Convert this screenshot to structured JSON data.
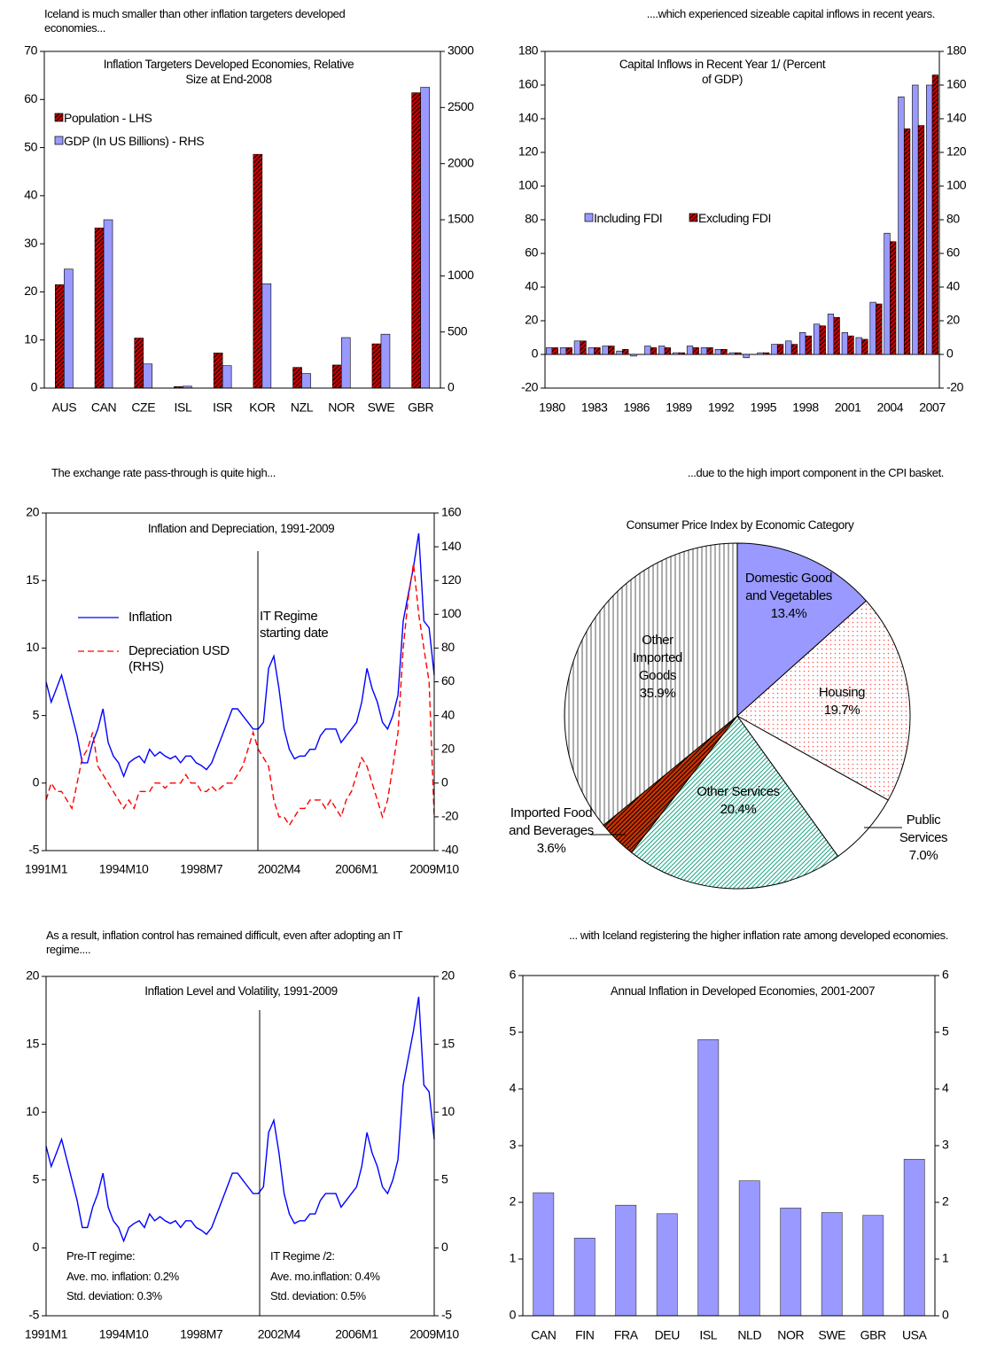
{
  "chart_data": [
    {
      "type": "bar",
      "header": "Iceland is much smaller than other inflation targeters developed economies...",
      "title": "Inflation Targeters Developed Economies, Relative Size at End-2008",
      "categories": [
        "AUS",
        "CAN",
        "CZE",
        "ISL",
        "ISR",
        "KOR",
        "NZL",
        "NOR",
        "SWE",
        "GBR"
      ],
      "series": [
        {
          "name": "Population - LHS",
          "color": "#cc0000",
          "pattern": "hatch",
          "axis": "y",
          "values": [
            21.5,
            33.3,
            10.4,
            0.3,
            7.3,
            48.6,
            4.3,
            4.8,
            9.2,
            61.4
          ]
        },
        {
          "name": "GDP (In US Billions) - RHS",
          "color": "#9999ff",
          "pattern": "solid",
          "axis": "y2",
          "values": [
            1060,
            1500,
            215,
            17,
            200,
            930,
            130,
            450,
            480,
            2680
          ]
        }
      ],
      "ylim": [
        0,
        70
      ],
      "yticks": [
        0,
        10,
        20,
        30,
        40,
        50,
        60,
        70
      ],
      "y2lim": [
        0,
        3000
      ],
      "y2ticks": [
        0,
        500,
        1000,
        1500,
        2000,
        2500,
        3000
      ],
      "legend": "upper left"
    },
    {
      "type": "bar",
      "header": "....which experienced sizeable capital inflows in recent years.",
      "title": "Capital Inflows in Recent Year 1/ (Percent of GDP)",
      "categories": [
        "1980",
        null,
        null,
        "1983",
        null,
        null,
        "1986",
        null,
        null,
        "1989",
        null,
        null,
        "1992",
        null,
        null,
        "1995",
        null,
        null,
        "1998",
        null,
        null,
        "2001",
        null,
        null,
        "2004",
        null,
        null,
        "2007"
      ],
      "series": [
        {
          "name": "Including FDI",
          "color": "#9999ff",
          "pattern": "solid",
          "axis": "y",
          "values": [
            4,
            4,
            8,
            4,
            5,
            2,
            -1,
            5,
            5,
            1,
            5,
            4,
            3,
            1,
            -2,
            1,
            6,
            8,
            13,
            18,
            24,
            13,
            10,
            31,
            72,
            153,
            160,
            160
          ]
        },
        {
          "name": "Excluding FDI",
          "color": "#cc0000",
          "pattern": "hatch",
          "axis": "y",
          "values": [
            4,
            4,
            8,
            4,
            5,
            3,
            0,
            4,
            4,
            1,
            4,
            4,
            3,
            1,
            0,
            1,
            6,
            6,
            11,
            17,
            22,
            11,
            9,
            30,
            67,
            134,
            136,
            166
          ]
        }
      ],
      "ylim": [
        -20,
        180
      ],
      "yticks": [
        -20,
        0,
        20,
        40,
        60,
        80,
        100,
        120,
        140,
        160,
        180
      ],
      "y2lim": [
        -20,
        180
      ],
      "y2ticks": [
        -20,
        0,
        20,
        40,
        60,
        80,
        100,
        120,
        140,
        160,
        180
      ],
      "legend": "center left"
    },
    {
      "type": "line",
      "header": "The exchange rate pass-through is quite high...",
      "title": "Inflation and Depreciation, 1991-2009",
      "annotations": [
        "IT Regime starting date"
      ],
      "categories": [
        "1991M1",
        null,
        null,
        null,
        null,
        null,
        null,
        null,
        null,
        null,
        null,
        null,
        null,
        null,
        null,
        "1994M10",
        null,
        null,
        null,
        null,
        null,
        null,
        null,
        null,
        null,
        null,
        null,
        null,
        null,
        null,
        "1998M7",
        null,
        null,
        null,
        null,
        null,
        null,
        null,
        null,
        null,
        null,
        null,
        null,
        null,
        null,
        "2002M4",
        null,
        null,
        null,
        null,
        null,
        null,
        null,
        null,
        null,
        null,
        null,
        null,
        null,
        null,
        "2006M1",
        null,
        null,
        null,
        null,
        null,
        null,
        null,
        null,
        null,
        null,
        null,
        null,
        null,
        null,
        "2009M10"
      ],
      "series": [
        {
          "name": "Inflation",
          "color": "#0000ff",
          "style": "solid",
          "axis": "y",
          "values": [
            7.5,
            6,
            7,
            8,
            6.5,
            5,
            3.5,
            1.5,
            1.5,
            3,
            4,
            5.5,
            3,
            2,
            1.5,
            0.5,
            1.5,
            1.8,
            2,
            1.5,
            2.5,
            2,
            2.3,
            2,
            1.8,
            2,
            1.5,
            2,
            2,
            1.5,
            1.3,
            1,
            1.5,
            2.5,
            3.5,
            4.5,
            5.5,
            5.5,
            5,
            4.5,
            4,
            4,
            4.5,
            8.5,
            9.4,
            7,
            4,
            2.5,
            1.8,
            2,
            2,
            2.5,
            2.5,
            3.5,
            4,
            4,
            4,
            3,
            3.5,
            4,
            4.5,
            6,
            8.5,
            7,
            6,
            4.5,
            4,
            5,
            6.5,
            12,
            14,
            16,
            18.5,
            12,
            11.5,
            8
          ]
        },
        {
          "name": "Depreciation USD (RHS)",
          "color": "#ff0000",
          "style": "dashed",
          "axis": "y2",
          "values": [
            -10,
            0,
            -5,
            -5,
            -10,
            -15,
            0,
            15,
            20,
            30,
            10,
            5,
            0,
            -5,
            -10,
            -15,
            -10,
            -15,
            -5,
            -5,
            -5,
            0,
            0,
            -3,
            0,
            0,
            0,
            5,
            0,
            0,
            -5,
            -5,
            -2,
            -5,
            -2,
            0,
            0,
            5,
            10,
            20,
            30,
            20,
            15,
            10,
            -10,
            -20,
            -20,
            -25,
            -20,
            -15,
            -15,
            -10,
            -10,
            -10,
            -15,
            -10,
            -15,
            -20,
            -10,
            -5,
            5,
            15,
            10,
            0,
            -10,
            -20,
            -10,
            10,
            30,
            80,
            110,
            130,
            100,
            80,
            60,
            -20
          ]
        }
      ],
      "ylim": [
        -5,
        20
      ],
      "yticks": [
        -5,
        0,
        5,
        10,
        15,
        20
      ],
      "y2lim": [
        -40,
        160
      ],
      "y2ticks": [
        -40,
        -20,
        0,
        20,
        40,
        60,
        80,
        100,
        120,
        140,
        160
      ],
      "legend": "center left"
    },
    {
      "type": "pie",
      "header": "...due to the high import component in the CPI basket.",
      "title": "Consumer Price Index by Economic Category",
      "labels": [
        "Domestic Good and Vegetables",
        "Housing",
        "Public Services",
        "Other Services",
        "Imported Food and Beverages",
        "Other Imported Goods"
      ],
      "values": [
        13.4,
        19.7,
        7.0,
        20.4,
        3.6,
        35.9
      ],
      "value_labels": [
        "13.4%",
        "19.7%",
        "7.0%",
        "20.4%",
        "3.6%",
        "35.9%"
      ],
      "colors": [
        "#9999ff",
        "#ff5555",
        "#ffffff",
        "#22aa88",
        "#cc3300",
        "#8a8a8a"
      ],
      "patterns": [
        "solid",
        "dots",
        "solid",
        "lines",
        "hatch",
        "vstripes"
      ]
    },
    {
      "type": "line",
      "header": "As a result, inflation control has remained difficult, even after adopting an IT regime....",
      "title": "Inflation Level and Volatility, 1991-2009",
      "annotations": [
        "Pre-IT regime:",
        "Ave. mo. inflation: 0.2%",
        "Std. deviation: 0.3%",
        "IT Regime /2:",
        "Ave. mo.inflation: 0.4%",
        "Std. deviation: 0.5%"
      ],
      "categories": [
        "1991M1",
        null,
        null,
        null,
        null,
        null,
        null,
        null,
        null,
        null,
        null,
        null,
        null,
        null,
        null,
        "1994M10",
        null,
        null,
        null,
        null,
        null,
        null,
        null,
        null,
        null,
        null,
        null,
        null,
        null,
        null,
        "1998M7",
        null,
        null,
        null,
        null,
        null,
        null,
        null,
        null,
        null,
        null,
        null,
        null,
        null,
        null,
        "2002M4",
        null,
        null,
        null,
        null,
        null,
        null,
        null,
        null,
        null,
        null,
        null,
        null,
        null,
        null,
        "2006M1",
        null,
        null,
        null,
        null,
        null,
        null,
        null,
        null,
        null,
        null,
        null,
        null,
        null,
        null,
        "2009M10"
      ],
      "series": [
        {
          "color": "#0000ff",
          "style": "solid",
          "axis": "y",
          "values": [
            7.5,
            6,
            7,
            8,
            6.5,
            5,
            3.5,
            1.5,
            1.5,
            3,
            4,
            5.5,
            3,
            2,
            1.5,
            0.5,
            1.5,
            1.8,
            2,
            1.5,
            2.5,
            2,
            2.3,
            2,
            1.8,
            2,
            1.5,
            2,
            2,
            1.5,
            1.3,
            1,
            1.5,
            2.5,
            3.5,
            4.5,
            5.5,
            5.5,
            5,
            4.5,
            4,
            4,
            4.5,
            8.5,
            9.4,
            7,
            4,
            2.5,
            1.8,
            2,
            2,
            2.5,
            2.5,
            3.5,
            4,
            4,
            4,
            3,
            3.5,
            4,
            4.5,
            6,
            8.5,
            7,
            6,
            4.5,
            4,
            5,
            6.5,
            12,
            14,
            16,
            18.5,
            12,
            11.5,
            8
          ]
        }
      ],
      "ylim": [
        -5,
        20
      ],
      "yticks": [
        -5,
        0,
        5,
        10,
        15,
        20
      ],
      "y2lim": [
        -5,
        20
      ],
      "y2ticks": [
        -5,
        0,
        5,
        10,
        15,
        20
      ]
    },
    {
      "type": "bar",
      "header": "... with Iceland registering the higher inflation rate among developed economies.",
      "title": "Annual Inflation in Developed Economies, 2001-2007",
      "categories": [
        "CAN",
        "FIN",
        "FRA",
        "DEU",
        "ISL",
        "NLD",
        "NOR",
        "SWE",
        "GBR",
        "USA"
      ],
      "series": [
        {
          "color": "#9999ff",
          "pattern": "solid",
          "axis": "y",
          "values": [
            2.17,
            1.37,
            1.95,
            1.8,
            4.87,
            2.38,
            1.9,
            1.82,
            1.77,
            2.76
          ]
        }
      ],
      "ylim": [
        0,
        6
      ],
      "yticks": [
        0,
        1,
        2,
        3,
        4,
        5,
        6
      ],
      "y2lim": [
        0,
        6
      ],
      "y2ticks": [
        0,
        1,
        2,
        3,
        4,
        5,
        6
      ]
    }
  ]
}
